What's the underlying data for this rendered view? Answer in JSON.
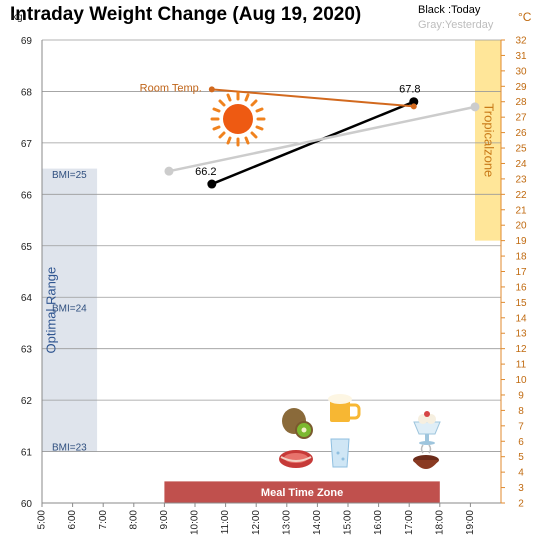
{
  "chart_data": {
    "type": "line",
    "title": "Intraday Weight Change (Aug 19, 2020)",
    "legend": {
      "today": "Black :Today",
      "yesterday": "Gray:Yesterday",
      "placement": "top-right"
    },
    "left_axis": {
      "label": "kg",
      "ylim": [
        60,
        69
      ],
      "ticks": [
        "60",
        "61",
        "62",
        "63",
        "64",
        "65",
        "66",
        "67",
        "68",
        "69"
      ]
    },
    "right_axis": {
      "label": "°C",
      "ylim": [
        2,
        32
      ],
      "ticks": [
        "2",
        "3",
        "4",
        "5",
        "6",
        "7",
        "8",
        "9",
        "10",
        "11",
        "12",
        "13",
        "14",
        "15",
        "16",
        "17",
        "18",
        "19",
        "20",
        "21",
        "22",
        "23",
        "24",
        "25",
        "26",
        "27",
        "28",
        "29",
        "30",
        "31",
        "32"
      ]
    },
    "x_axis": {
      "min": 5,
      "max": 20,
      "ticks": [
        {
          "hour": 5,
          "label": "5:00"
        },
        {
          "hour": 6,
          "label": "6:00"
        },
        {
          "hour": 7,
          "label": "7:00"
        },
        {
          "hour": 8,
          "label": "8:00"
        },
        {
          "hour": 9,
          "label": "9:00"
        },
        {
          "hour": 10,
          "label": "10:00"
        },
        {
          "hour": 11,
          "label": "11:00"
        },
        {
          "hour": 12,
          "label": "12:00"
        },
        {
          "hour": 13,
          "label": "13:00"
        },
        {
          "hour": 14,
          "label": "14:00"
        },
        {
          "hour": 15,
          "label": "15:00"
        },
        {
          "hour": 16,
          "label": "16:00"
        },
        {
          "hour": 17,
          "label": "17:00"
        },
        {
          "hour": 18,
          "label": "18:00"
        },
        {
          "hour": 19,
          "label": "19:00"
        }
      ]
    },
    "series": [
      {
        "name": "Today",
        "color": "#000000",
        "axis": "left",
        "points": [
          {
            "x": 10.55,
            "y": 66.2,
            "label": "66.2"
          },
          {
            "x": 17.15,
            "y": 67.8,
            "label": "67.8"
          }
        ]
      },
      {
        "name": "Yesterday",
        "color": "#cccccc",
        "axis": "left",
        "points": [
          {
            "x": 9.15,
            "y": 66.45
          },
          {
            "x": 19.15,
            "y": 67.7
          }
        ]
      },
      {
        "name": "Room Temp.",
        "color": "#d2691e",
        "axis": "right",
        "points": [
          {
            "x": 10.55,
            "y": 28.8
          },
          {
            "x": 17.15,
            "y": 27.7
          }
        ]
      }
    ],
    "bands": [
      {
        "name": "Optimal Range",
        "axis": "left",
        "x_from": 5,
        "x_to": 6.8,
        "y_from": 61,
        "y_to": 66.5,
        "color": "#dfe4ec"
      },
      {
        "name": "Tropicalzone",
        "axis": "right",
        "x_from": 19.15,
        "x_to": 20,
        "y_from": 19,
        "y_to": 32,
        "color": "#ffe699"
      },
      {
        "name": "Meal Time Zone",
        "axis": "left",
        "x_from": 9,
        "x_to": 18,
        "y_from": 60,
        "y_to": 60.42,
        "color": "#c0504d"
      }
    ],
    "annotations": [
      {
        "text": "BMI=25",
        "y": 66.4
      },
      {
        "text": "BMI=24",
        "y": 63.8
      },
      {
        "text": "BMI=23",
        "y": 61.1
      }
    ],
    "grid": true
  },
  "icons": [
    "sun-icon",
    "kiwi-icon",
    "beer-icon",
    "parfait-icon",
    "steak-icon",
    "water-glass-icon",
    "soup-bowl-icon"
  ]
}
